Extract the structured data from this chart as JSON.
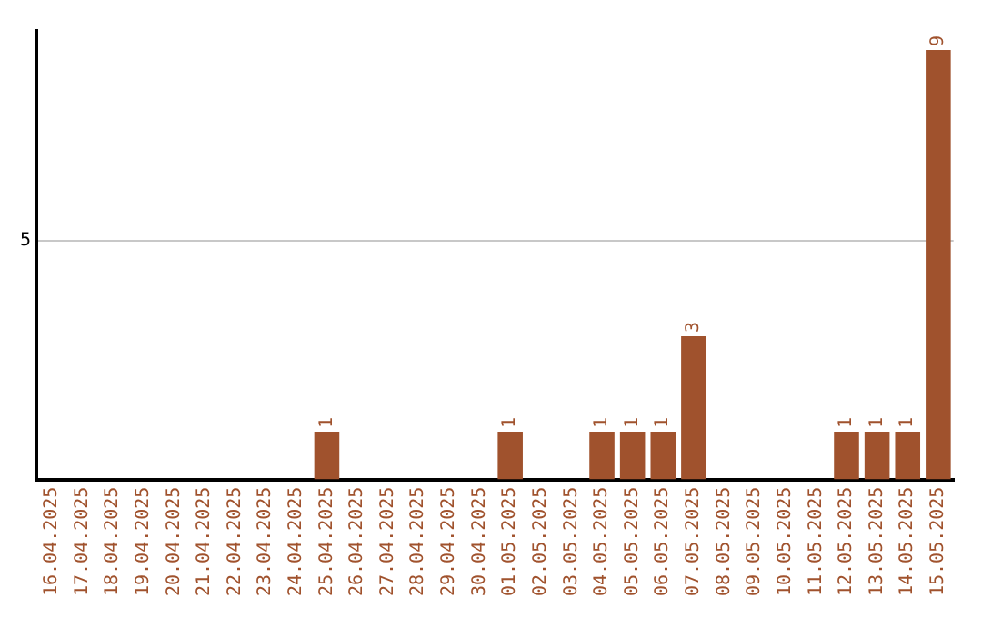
{
  "chart_data": {
    "type": "bar",
    "categories": [
      "16.04.2025",
      "17.04.2025",
      "18.04.2025",
      "19.04.2025",
      "20.04.2025",
      "21.04.2025",
      "22.04.2025",
      "23.04.2025",
      "24.04.2025",
      "25.04.2025",
      "26.04.2025",
      "27.04.2025",
      "28.04.2025",
      "29.04.2025",
      "30.04.2025",
      "01.05.2025",
      "02.05.2025",
      "03.05.2025",
      "04.05.2025",
      "05.05.2025",
      "06.05.2025",
      "07.05.2025",
      "08.05.2025",
      "09.05.2025",
      "10.05.2025",
      "11.05.2025",
      "12.05.2025",
      "13.05.2025",
      "14.05.2025",
      "15.05.2025"
    ],
    "values": [
      0,
      0,
      0,
      0,
      0,
      0,
      0,
      0,
      0,
      1,
      0,
      0,
      0,
      0,
      0,
      1,
      0,
      0,
      1,
      1,
      1,
      3,
      0,
      0,
      0,
      0,
      1,
      1,
      1,
      9
    ],
    "value_labels": [
      null,
      null,
      null,
      null,
      null,
      null,
      null,
      null,
      null,
      "1",
      null,
      null,
      null,
      null,
      null,
      "1",
      null,
      null,
      "1",
      "1",
      "1",
      "3",
      null,
      null,
      null,
      null,
      "1",
      "1",
      "1",
      "9"
    ],
    "color": "#a0522d",
    "ylim": [
      0,
      9.4
    ],
    "yticks": [
      5
    ],
    "grid": "y",
    "legend": false
  }
}
